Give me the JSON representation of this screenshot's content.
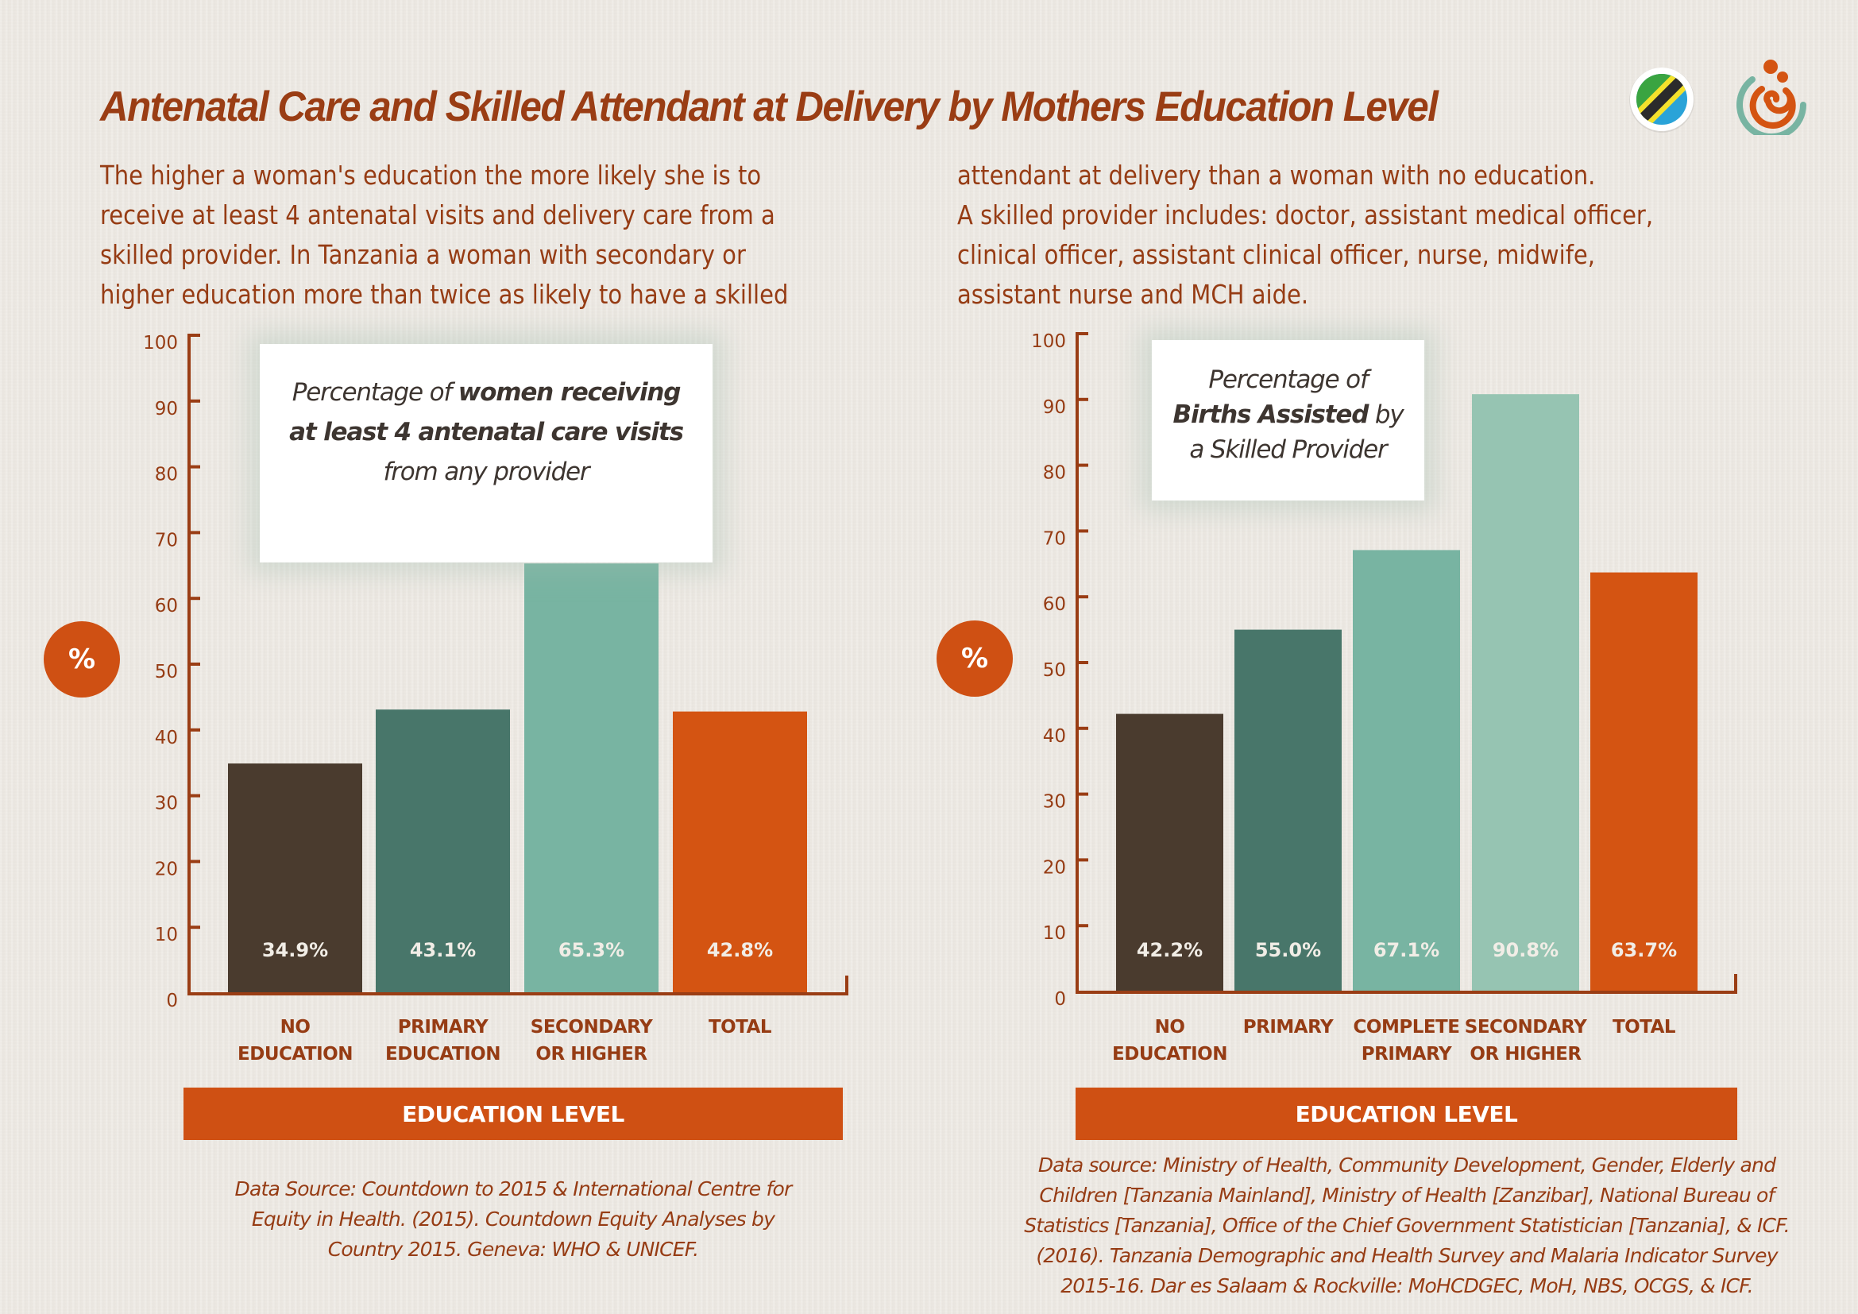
{
  "header": {
    "title": "Antenatal Care and Skilled Attendant at Delivery by Mothers Education Level",
    "flag_icon": "tanzania-flag-icon",
    "logo_icon": "spiral-mother-child-logo-icon"
  },
  "intro": {
    "left_lines": [
      "The higher a woman's education the more likely she is to",
      "receive at least 4 antenatal visits and delivery care from a",
      "skilled provider. In Tanzania a woman with secondary or",
      "higher education more than twice as likely to have a skilled"
    ],
    "right_lines": [
      "attendant at delivery than a woman with no education.",
      "A skilled provider includes: doctor, assistant medical officer,",
      "clinical officer, assistant clinical officer, nurse, midwife,",
      "assistant nurse and MCH aide."
    ]
  },
  "colors": {
    "title": "#9a3d14",
    "axis": "#9a3d14",
    "accent_orange": "#cf5013",
    "no_education": "#4a3b2e",
    "primary": "#48766a",
    "complete_primary": "#78b4a2",
    "secondary_or_higher_left": "#78b4a2",
    "secondary_or_higher_right": "#96c4b2",
    "total": "#d45412",
    "background": "#ede9e3"
  },
  "chart_data": [
    {
      "type": "bar",
      "title_parts": {
        "line1_plain": "Percentage of ",
        "line1_bold": "women receiving",
        "line2_bold": "at least 4 antenatal care visits",
        "line3_plain": "from any provider"
      },
      "ylabel": "%",
      "xlabel": "EDUCATION LEVEL",
      "ylim": [
        0,
        100
      ],
      "yticks": [
        0,
        10,
        20,
        30,
        40,
        50,
        60,
        70,
        80,
        90,
        100
      ],
      "grid": false,
      "categories": [
        [
          "NO",
          "EDUCATION"
        ],
        [
          "PRIMARY",
          "EDUCATION"
        ],
        [
          "SECONDARY",
          "OR HIGHER"
        ],
        [
          "TOTAL"
        ]
      ],
      "values": [
        34.9,
        43.1,
        65.3,
        42.8
      ],
      "value_labels": [
        "34.9%",
        "43.1%",
        "65.3%",
        "42.8%"
      ],
      "bar_colors": [
        "#4a3b2e",
        "#48766a",
        "#78b4a2",
        "#d45412"
      ],
      "source": [
        "Data Source: Countdown to 2015 & International Centre for",
        "Equity in Health. (2015). Countdown Equity Analyses by",
        "Country 2015. Geneva: WHO & UNICEF."
      ]
    },
    {
      "type": "bar",
      "title_parts": {
        "line1_plain": "Percentage of",
        "line2_bold": "Births Assisted",
        "line2_plain": " by",
        "line3_plain": "a Skilled Provider"
      },
      "ylabel": "%",
      "xlabel": "EDUCATION LEVEL",
      "ylim": [
        0,
        100
      ],
      "yticks": [
        0,
        10,
        20,
        30,
        40,
        50,
        60,
        70,
        80,
        90,
        100
      ],
      "grid": false,
      "categories": [
        [
          "NO",
          "EDUCATION"
        ],
        [
          "PRIMARY"
        ],
        [
          "COMPLETE",
          "PRIMARY"
        ],
        [
          "SECONDARY",
          "OR HIGHER"
        ],
        [
          "TOTAL"
        ]
      ],
      "values": [
        42.2,
        55.0,
        67.1,
        90.8,
        63.7
      ],
      "value_labels": [
        "42.2%",
        "55.0%",
        "67.1%",
        "90.8%",
        "63.7%"
      ],
      "bar_colors": [
        "#4a3b2e",
        "#48766a",
        "#78b4a2",
        "#96c4b2",
        "#d45412"
      ],
      "source": [
        "Data source: Ministry of Health, Community Development, Gender, Elderly and",
        "Children [Tanzania Mainland], Ministry of Health [Zanzibar], National Bureau of",
        "Statistics [Tanzania], Office of the Chief Government Statistician [Tanzania], & ICF.",
        "(2016). Tanzania Demographic and Health Survey and Malaria Indicator Survey",
        "2015-16. Dar es Salaam & Rockville: MoHCDGEC, MoH, NBS, OCGS, & ICF."
      ]
    }
  ]
}
